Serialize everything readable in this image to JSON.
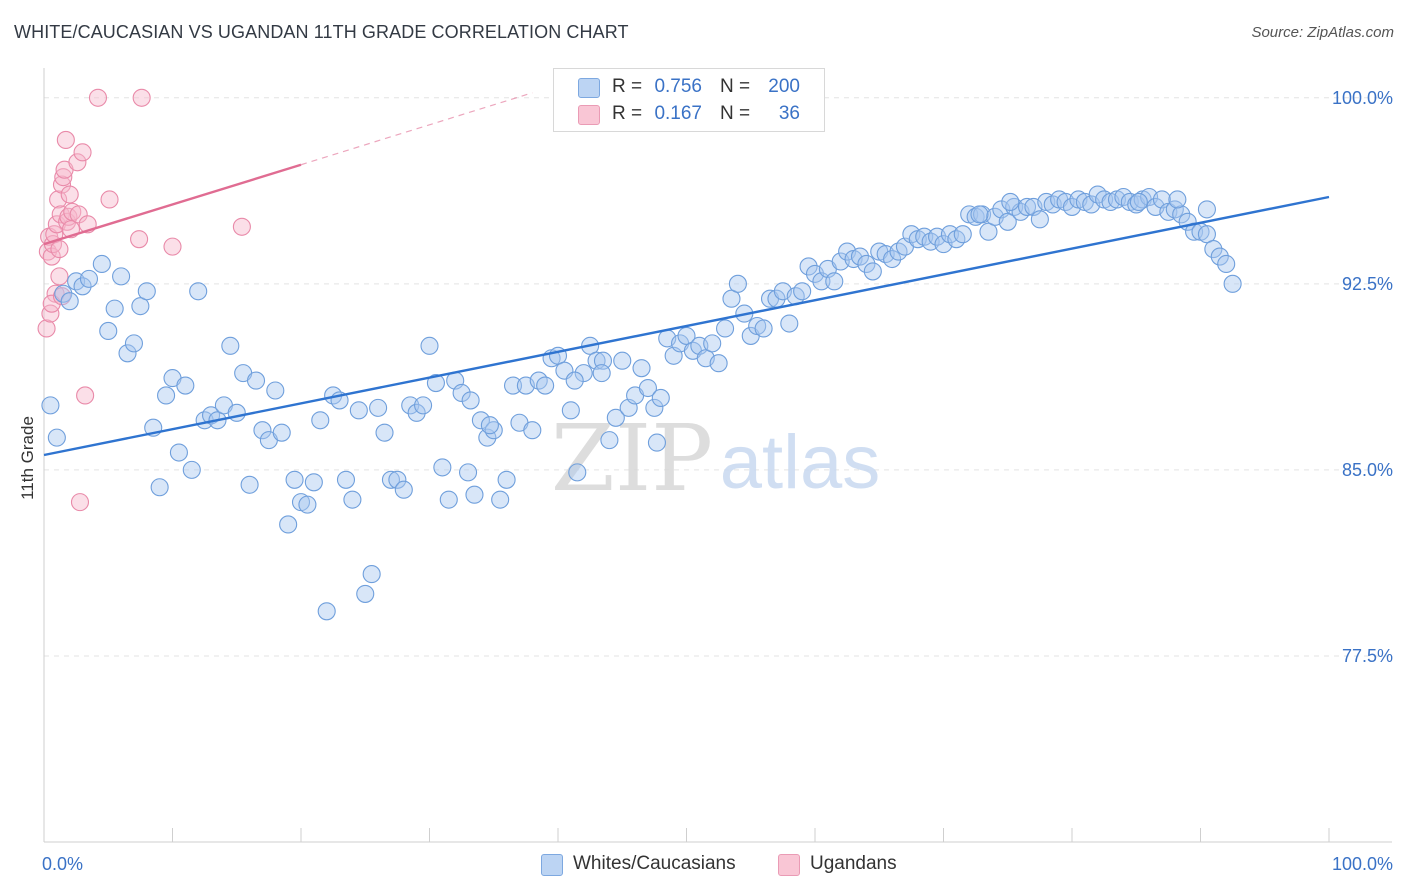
{
  "title": "WHITE/CAUCASIAN VS UGANDAN 11TH GRADE CORRELATION CHART",
  "source": "Source: ZipAtlas.com",
  "watermark": {
    "zip": "ZIP",
    "atlas": "atlas"
  },
  "colors": {
    "blue_fill": "#a9c7ef",
    "blue_stroke": "#6f9fdc",
    "blue_line": "#2f74d0",
    "pink_fill": "#f7b9cc",
    "pink_stroke": "#e98aa9",
    "pink_line": "#e06c92",
    "axis_label_blue": "#3a72c6",
    "grid": "#e3e3e3"
  },
  "legend": {
    "r_label": "R =",
    "n_label": "N =",
    "rows": [
      {
        "series": "blue",
        "r": "0.756",
        "n": "200"
      },
      {
        "series": "pink",
        "r": "0.167",
        "n": "36"
      }
    ]
  },
  "chart_data": {
    "type": "scatter",
    "title": "WHITE/CAUCASIAN VS UGANDAN 11TH GRADE CORRELATION CHART",
    "xlabel": "",
    "ylabel": "11th Grade",
    "xlim": [
      0,
      100
    ],
    "ylim": [
      70.0,
      101.2
    ],
    "x_tick_labels": [
      {
        "value": 0,
        "label": "0.0%"
      },
      {
        "value": 100,
        "label": "100.0%"
      }
    ],
    "y_tick_labels": [
      {
        "value": 100.0,
        "label": "100.0%"
      },
      {
        "value": 92.5,
        "label": "92.5%"
      },
      {
        "value": 85.0,
        "label": "85.0%"
      },
      {
        "value": 77.5,
        "label": "77.5%"
      }
    ],
    "x_minor_ticks": [
      10,
      20,
      30,
      40,
      50,
      60,
      70,
      80,
      90,
      100
    ],
    "grid": true,
    "legend_position": "top-center",
    "series": [
      {
        "name": "Whites/Caucasians",
        "color": "blue",
        "R": 0.756,
        "N": 200,
        "trend": {
          "x": [
            0,
            100
          ],
          "y": [
            85.6,
            96.0
          ]
        },
        "points": [
          [
            0.5,
            87.6
          ],
          [
            1.0,
            86.3
          ],
          [
            1.5,
            92.1
          ],
          [
            2.0,
            91.8
          ],
          [
            2.5,
            92.6
          ],
          [
            3.0,
            92.4
          ],
          [
            3.5,
            92.7
          ],
          [
            4.5,
            93.3
          ],
          [
            5.0,
            90.6
          ],
          [
            5.5,
            91.5
          ],
          [
            6.0,
            92.8
          ],
          [
            6.5,
            89.7
          ],
          [
            7.0,
            90.1
          ],
          [
            7.5,
            91.6
          ],
          [
            8.0,
            92.2
          ],
          [
            8.5,
            86.7
          ],
          [
            9.0,
            84.3
          ],
          [
            9.5,
            88.0
          ],
          [
            10.0,
            88.7
          ],
          [
            10.5,
            85.7
          ],
          [
            11.0,
            88.4
          ],
          [
            11.5,
            85.0
          ],
          [
            12.0,
            92.2
          ],
          [
            12.5,
            87.0
          ],
          [
            13.0,
            87.2
          ],
          [
            13.5,
            87.0
          ],
          [
            14.0,
            87.6
          ],
          [
            14.5,
            90.0
          ],
          [
            15.0,
            87.3
          ],
          [
            15.5,
            88.9
          ],
          [
            16.0,
            84.4
          ],
          [
            16.5,
            88.6
          ],
          [
            17.0,
            86.6
          ],
          [
            17.5,
            86.2
          ],
          [
            18.0,
            88.2
          ],
          [
            18.5,
            86.5
          ],
          [
            19.0,
            82.8
          ],
          [
            19.5,
            84.6
          ],
          [
            20.0,
            83.7
          ],
          [
            20.5,
            83.6
          ],
          [
            21.0,
            84.5
          ],
          [
            21.5,
            87.0
          ],
          [
            22.0,
            79.3
          ],
          [
            22.5,
            88.0
          ],
          [
            23.0,
            87.8
          ],
          [
            23.5,
            84.6
          ],
          [
            24.0,
            83.8
          ],
          [
            24.5,
            87.4
          ],
          [
            25.0,
            80.0
          ],
          [
            25.5,
            80.8
          ],
          [
            26.0,
            87.5
          ],
          [
            26.5,
            86.5
          ],
          [
            27.0,
            84.6
          ],
          [
            27.5,
            84.6
          ],
          [
            28.0,
            84.2
          ],
          [
            28.5,
            87.6
          ],
          [
            29.0,
            87.3
          ],
          [
            29.5,
            87.6
          ],
          [
            30.0,
            90.0
          ],
          [
            30.5,
            88.5
          ],
          [
            31.0,
            85.1
          ],
          [
            31.5,
            83.8
          ],
          [
            32.0,
            88.6
          ],
          [
            32.5,
            88.1
          ],
          [
            33.0,
            84.9
          ],
          [
            33.5,
            84.0
          ],
          [
            34.0,
            87.0
          ],
          [
            34.5,
            86.3
          ],
          [
            35.0,
            86.6
          ],
          [
            35.5,
            83.8
          ],
          [
            36.0,
            84.6
          ],
          [
            36.5,
            88.4
          ],
          [
            37.0,
            86.9
          ],
          [
            37.5,
            88.4
          ],
          [
            38.0,
            86.6
          ],
          [
            38.5,
            88.6
          ],
          [
            39.0,
            88.4
          ],
          [
            39.5,
            89.5
          ],
          [
            40.0,
            89.6
          ],
          [
            40.5,
            89.0
          ],
          [
            41.0,
            87.4
          ],
          [
            41.5,
            84.9
          ],
          [
            42.0,
            88.9
          ],
          [
            42.5,
            90.0
          ],
          [
            43.0,
            89.4
          ],
          [
            43.5,
            89.4
          ],
          [
            44.0,
            86.2
          ],
          [
            44.5,
            87.1
          ],
          [
            45.0,
            89.4
          ],
          [
            45.5,
            87.5
          ],
          [
            46.0,
            88.0
          ],
          [
            46.5,
            89.1
          ],
          [
            47.0,
            88.3
          ],
          [
            47.5,
            87.5
          ],
          [
            48.0,
            87.9
          ],
          [
            48.5,
            90.3
          ],
          [
            49.0,
            89.6
          ],
          [
            49.5,
            90.1
          ],
          [
            50.0,
            90.4
          ],
          [
            50.5,
            89.8
          ],
          [
            51.0,
            90.0
          ],
          [
            51.5,
            89.5
          ],
          [
            52.0,
            90.1
          ],
          [
            52.5,
            89.3
          ],
          [
            53.0,
            90.7
          ],
          [
            53.5,
            91.9
          ],
          [
            54.0,
            92.5
          ],
          [
            54.5,
            91.3
          ],
          [
            55.0,
            90.4
          ],
          [
            55.5,
            90.8
          ],
          [
            56.0,
            90.7
          ],
          [
            56.5,
            91.9
          ],
          [
            57.0,
            91.9
          ],
          [
            57.5,
            92.2
          ],
          [
            58.0,
            90.9
          ],
          [
            58.5,
            92.0
          ],
          [
            59.0,
            92.2
          ],
          [
            59.5,
            93.2
          ],
          [
            60.0,
            92.9
          ],
          [
            60.5,
            92.6
          ],
          [
            61.0,
            93.1
          ],
          [
            61.5,
            92.6
          ],
          [
            62.0,
            93.4
          ],
          [
            62.5,
            93.8
          ],
          [
            63.0,
            93.5
          ],
          [
            63.5,
            93.6
          ],
          [
            64.0,
            93.3
          ],
          [
            64.5,
            93.0
          ],
          [
            65.0,
            93.8
          ],
          [
            65.5,
            93.7
          ],
          [
            66.0,
            93.5
          ],
          [
            66.5,
            93.8
          ],
          [
            67.0,
            94.0
          ],
          [
            67.5,
            94.5
          ],
          [
            68.0,
            94.3
          ],
          [
            68.5,
            94.4
          ],
          [
            69.0,
            94.2
          ],
          [
            69.5,
            94.4
          ],
          [
            70.0,
            94.1
          ],
          [
            70.5,
            94.5
          ],
          [
            71.0,
            94.3
          ],
          [
            71.5,
            94.5
          ],
          [
            72.0,
            95.3
          ],
          [
            72.5,
            95.2
          ],
          [
            73.0,
            95.3
          ],
          [
            73.5,
            94.6
          ],
          [
            74.0,
            95.2
          ],
          [
            74.5,
            95.5
          ],
          [
            75.0,
            95.0
          ],
          [
            75.5,
            95.6
          ],
          [
            76.0,
            95.4
          ],
          [
            76.5,
            95.6
          ],
          [
            77.0,
            95.6
          ],
          [
            77.5,
            95.1
          ],
          [
            78.0,
            95.8
          ],
          [
            78.5,
            95.7
          ],
          [
            79.0,
            95.9
          ],
          [
            79.5,
            95.8
          ],
          [
            80.0,
            95.6
          ],
          [
            80.5,
            95.9
          ],
          [
            81.0,
            95.8
          ],
          [
            81.5,
            95.7
          ],
          [
            82.0,
            96.1
          ],
          [
            82.5,
            95.9
          ],
          [
            83.0,
            95.8
          ],
          [
            83.5,
            95.9
          ],
          [
            84.0,
            96.0
          ],
          [
            84.5,
            95.8
          ],
          [
            85.0,
            95.7
          ],
          [
            85.5,
            95.9
          ],
          [
            86.0,
            96.0
          ],
          [
            86.5,
            95.6
          ],
          [
            87.0,
            95.9
          ],
          [
            87.5,
            95.4
          ],
          [
            88.0,
            95.5
          ],
          [
            88.5,
            95.3
          ],
          [
            89.0,
            95.0
          ],
          [
            89.5,
            94.6
          ],
          [
            90.0,
            94.6
          ],
          [
            90.5,
            94.5
          ],
          [
            91.0,
            93.9
          ],
          [
            91.5,
            93.6
          ],
          [
            92.0,
            93.3
          ],
          [
            92.5,
            92.5
          ],
          [
            90.5,
            95.5
          ],
          [
            88.2,
            95.9
          ],
          [
            72.8,
            95.3
          ],
          [
            75.2,
            95.8
          ],
          [
            85.2,
            95.8
          ],
          [
            47.7,
            86.1
          ],
          [
            43.4,
            88.9
          ],
          [
            41.3,
            88.6
          ],
          [
            34.7,
            86.8
          ],
          [
            33.2,
            87.8
          ]
        ]
      },
      {
        "name": "Ugandans",
        "color": "pink",
        "R": 0.167,
        "N": 36,
        "trend": {
          "x": [
            0,
            20
          ],
          "y": [
            94.1,
            97.3
          ]
        },
        "trend_extension": {
          "x": [
            20,
            38
          ],
          "y": [
            97.3,
            100.2
          ]
        },
        "points": [
          [
            0.2,
            90.7
          ],
          [
            0.3,
            93.8
          ],
          [
            0.4,
            94.4
          ],
          [
            0.5,
            91.3
          ],
          [
            0.6,
            93.6
          ],
          [
            0.7,
            94.1
          ],
          [
            0.8,
            94.5
          ],
          [
            0.9,
            92.1
          ],
          [
            1.0,
            94.9
          ],
          [
            1.1,
            95.9
          ],
          [
            1.2,
            93.9
          ],
          [
            1.3,
            95.3
          ],
          [
            1.4,
            96.5
          ],
          [
            1.5,
            96.8
          ],
          [
            1.6,
            97.1
          ],
          [
            1.7,
            98.3
          ],
          [
            1.8,
            95.0
          ],
          [
            1.9,
            95.2
          ],
          [
            2.0,
            96.1
          ],
          [
            2.1,
            94.7
          ],
          [
            2.2,
            95.4
          ],
          [
            2.6,
            97.4
          ],
          [
            2.7,
            95.3
          ],
          [
            3.0,
            97.8
          ],
          [
            3.2,
            88.0
          ],
          [
            3.4,
            94.9
          ],
          [
            4.2,
            100.0
          ],
          [
            5.1,
            95.9
          ],
          [
            7.4,
            94.3
          ],
          [
            7.6,
            100.0
          ],
          [
            10.0,
            94.0
          ],
          [
            15.4,
            94.8
          ],
          [
            1.2,
            92.8
          ],
          [
            0.6,
            91.7
          ],
          [
            2.8,
            83.7
          ],
          [
            1.4,
            92.0
          ]
        ]
      }
    ]
  },
  "bottom_legend": [
    {
      "series": "blue",
      "label": "Whites/Caucasians"
    },
    {
      "series": "pink",
      "label": "Ugandans"
    }
  ]
}
